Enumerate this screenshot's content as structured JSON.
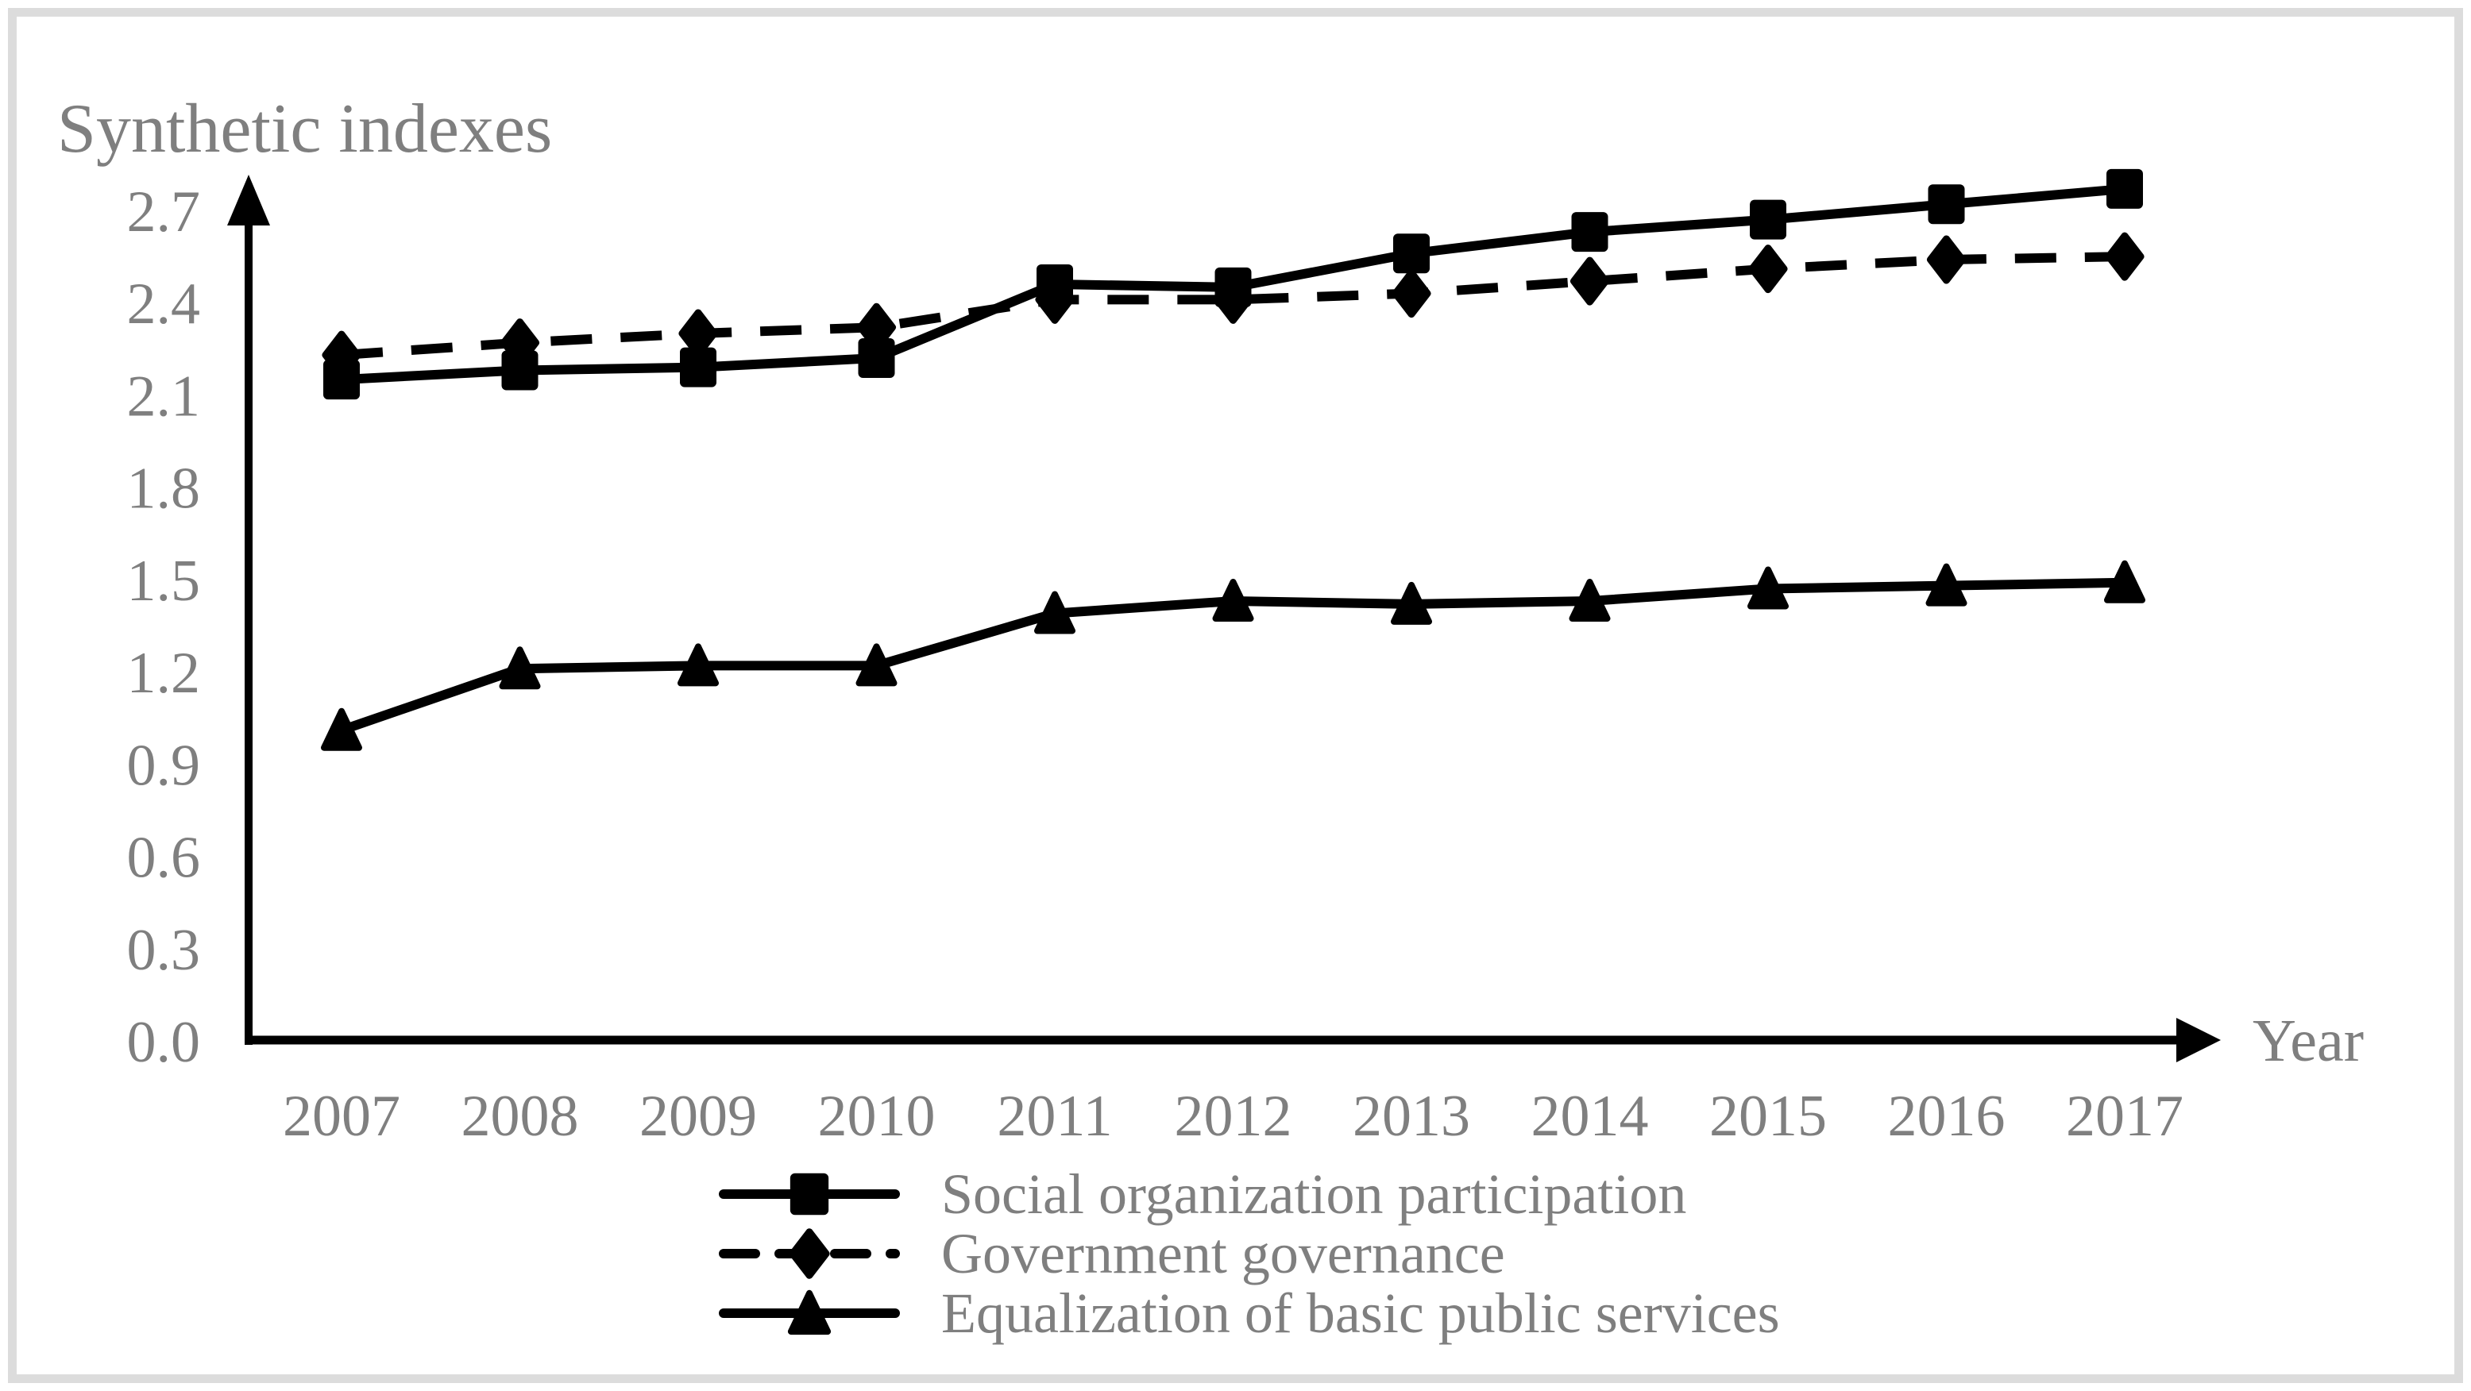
{
  "figure": {
    "background_color": "#ffffff",
    "border_color": "#dcdcdc",
    "text_color": "#7f7f7f",
    "line_color": "#000000"
  },
  "chart_data": {
    "type": "line",
    "ylabel": "Synthetic indexes",
    "xlabel": "Year",
    "x": [
      2007,
      2008,
      2009,
      2010,
      2011,
      2012,
      2013,
      2014,
      2015,
      2016,
      2017
    ],
    "y_ticks": [
      "0.0",
      "0.3",
      "0.6",
      "0.9",
      "1.2",
      "1.5",
      "1.8",
      "2.1",
      "2.4",
      "2.7"
    ],
    "ylim": [
      0,
      2.7
    ],
    "grid": false,
    "legend_position": "bottom",
    "series": [
      {
        "name": "Social organization participation",
        "marker": "square",
        "line_style": "solid",
        "color": "#000000",
        "values": [
          2.15,
          2.18,
          2.19,
          2.22,
          2.46,
          2.45,
          2.56,
          2.63,
          2.67,
          2.72,
          2.77
        ]
      },
      {
        "name": "Government governance",
        "marker": "diamond",
        "line_style": "dashed",
        "color": "#000000",
        "values": [
          2.23,
          2.27,
          2.3,
          2.32,
          2.41,
          2.41,
          2.43,
          2.47,
          2.51,
          2.54,
          2.55
        ]
      },
      {
        "name": "Equalization of basic public services",
        "marker": "triangle",
        "line_style": "solid",
        "color": "#000000",
        "values": [
          1.01,
          1.21,
          1.22,
          1.22,
          1.39,
          1.43,
          1.42,
          1.43,
          1.47,
          1.48,
          1.49
        ]
      }
    ]
  }
}
